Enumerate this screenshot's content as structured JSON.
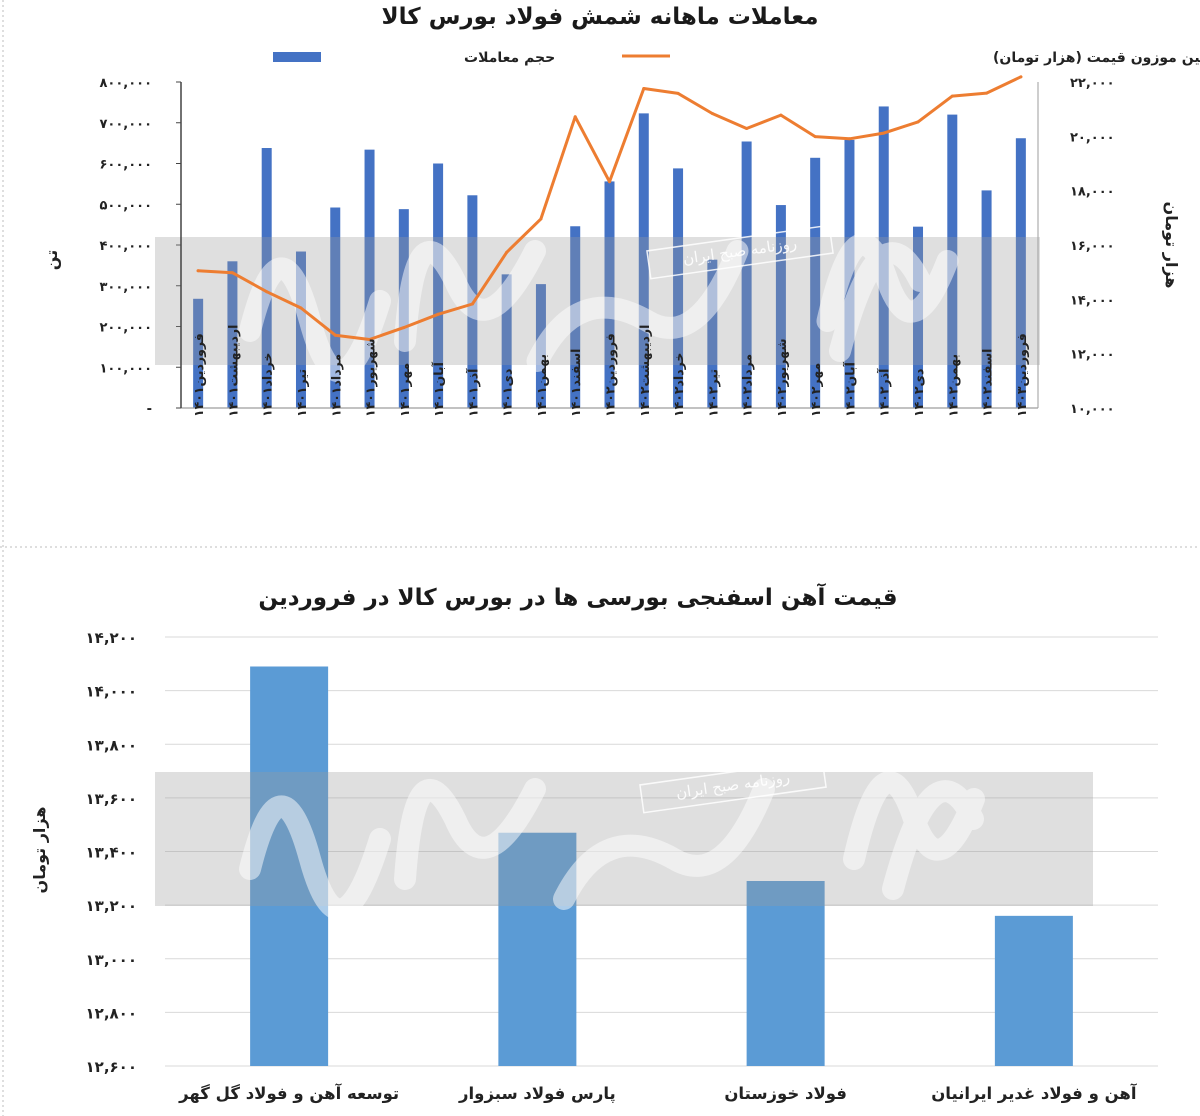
{
  "chart_data": [
    {
      "type": "bar",
      "title": "معاملات ماهانه شمش فولاد بورس کالا",
      "ylabel": "تن",
      "y2label": "هزار تومان",
      "ylim": [
        0,
        800000
      ],
      "y2lim": [
        10000,
        22000
      ],
      "yticks": [
        "-",
        "۱۰۰,۰۰۰",
        "۲۰۰,۰۰۰",
        "۳۰۰,۰۰۰",
        "۴۰۰,۰۰۰",
        "۵۰۰,۰۰۰",
        "۶۰۰,۰۰۰",
        "۷۰۰,۰۰۰",
        "۸۰۰,۰۰۰"
      ],
      "y2ticks": [
        "۱۰,۰۰۰",
        "۱۲,۰۰۰",
        "۱۴,۰۰۰",
        "۱۶,۰۰۰",
        "۱۸,۰۰۰",
        "۲۰,۰۰۰",
        "۲۲,۰۰۰"
      ],
      "categories": [
        "فروردین۱۴۰۱",
        "اردیبهشت۱۴۰۱",
        "خرداد۱۴۰۱",
        "تیر۱۴۰۱",
        "مرداد۱۴۰۱",
        "شهریور۱۴۰۱",
        "مهر۱۴۰۱",
        "آبان۱۴۰۱",
        "آذر۱۴۰۱",
        "دی۱۴۰۱",
        "بهمن۱۴۰۱",
        "اسفند۱۴۰۱",
        "فروردین۱۴۰۲",
        "اردیبهشت۱۴۰۲",
        "خرداد۱۴۰۲",
        "تیر۱۴۰۲",
        "مرداد۱۴۰۲",
        "شهریور۱۴۰۲",
        "مهر۱۴۰۲",
        "آبان۱۴۰۲",
        "آذر۱۴۰۲",
        "دی۱۴۰۲",
        "بهمن۱۴۰۲",
        "اسفند۱۴۰۲",
        "فروردین۱۴۰۳"
      ],
      "series": [
        {
          "name": "حجم معاملات",
          "type": "bar",
          "axis": "left",
          "color": "#4472C4",
          "values": [
            268000,
            360000,
            638000,
            384000,
            492000,
            634000,
            488000,
            600000,
            522000,
            328000,
            304000,
            446000,
            556000,
            723000,
            588000,
            364000,
            654000,
            498000,
            614000,
            658000,
            740000,
            445000,
            720000,
            534000,
            662000
          ]
        },
        {
          "name": "میانگین موزون قیمت (هزار تومان)",
          "type": "line",
          "axis": "right",
          "color": "#ED7D31",
          "values": [
            15050,
            14980,
            14280,
            13680,
            12680,
            12520,
            12960,
            13450,
            13830,
            15730,
            16960,
            20720,
            18330,
            21760,
            21580,
            20840,
            20290,
            20780,
            19990,
            19910,
            20120,
            20530,
            21480,
            21590,
            22190
          ]
        }
      ],
      "legend": "top",
      "grid": false
    },
    {
      "type": "bar",
      "title": "قیمت آهن اسفنجی بورسی ها در بورس کالا در فروردین",
      "ylabel": "هزار تومان",
      "ylim": [
        12600,
        14200
      ],
      "yticks": [
        "۱۲,۶۰۰",
        "۱۲,۸۰۰",
        "۱۳,۰۰۰",
        "۱۳,۲۰۰",
        "۱۳,۴۰۰",
        "۱۳,۶۰۰",
        "۱۳,۸۰۰",
        "۱۴,۰۰۰",
        "۱۴,۲۰۰"
      ],
      "categories": [
        "توسعه آهن و فولاد گل گهر",
        "پارس فولاد سبزوار",
        "فولاد خوزستان",
        "آهن و فولاد غدیر ایرانیان"
      ],
      "values": [
        14090,
        13470,
        13290,
        13160
      ],
      "color": "#5B9BD5",
      "grid": true
    }
  ],
  "watermark": {
    "text": "روزنامه صبح ایران",
    "logo": "دنیای اقتصاد"
  }
}
